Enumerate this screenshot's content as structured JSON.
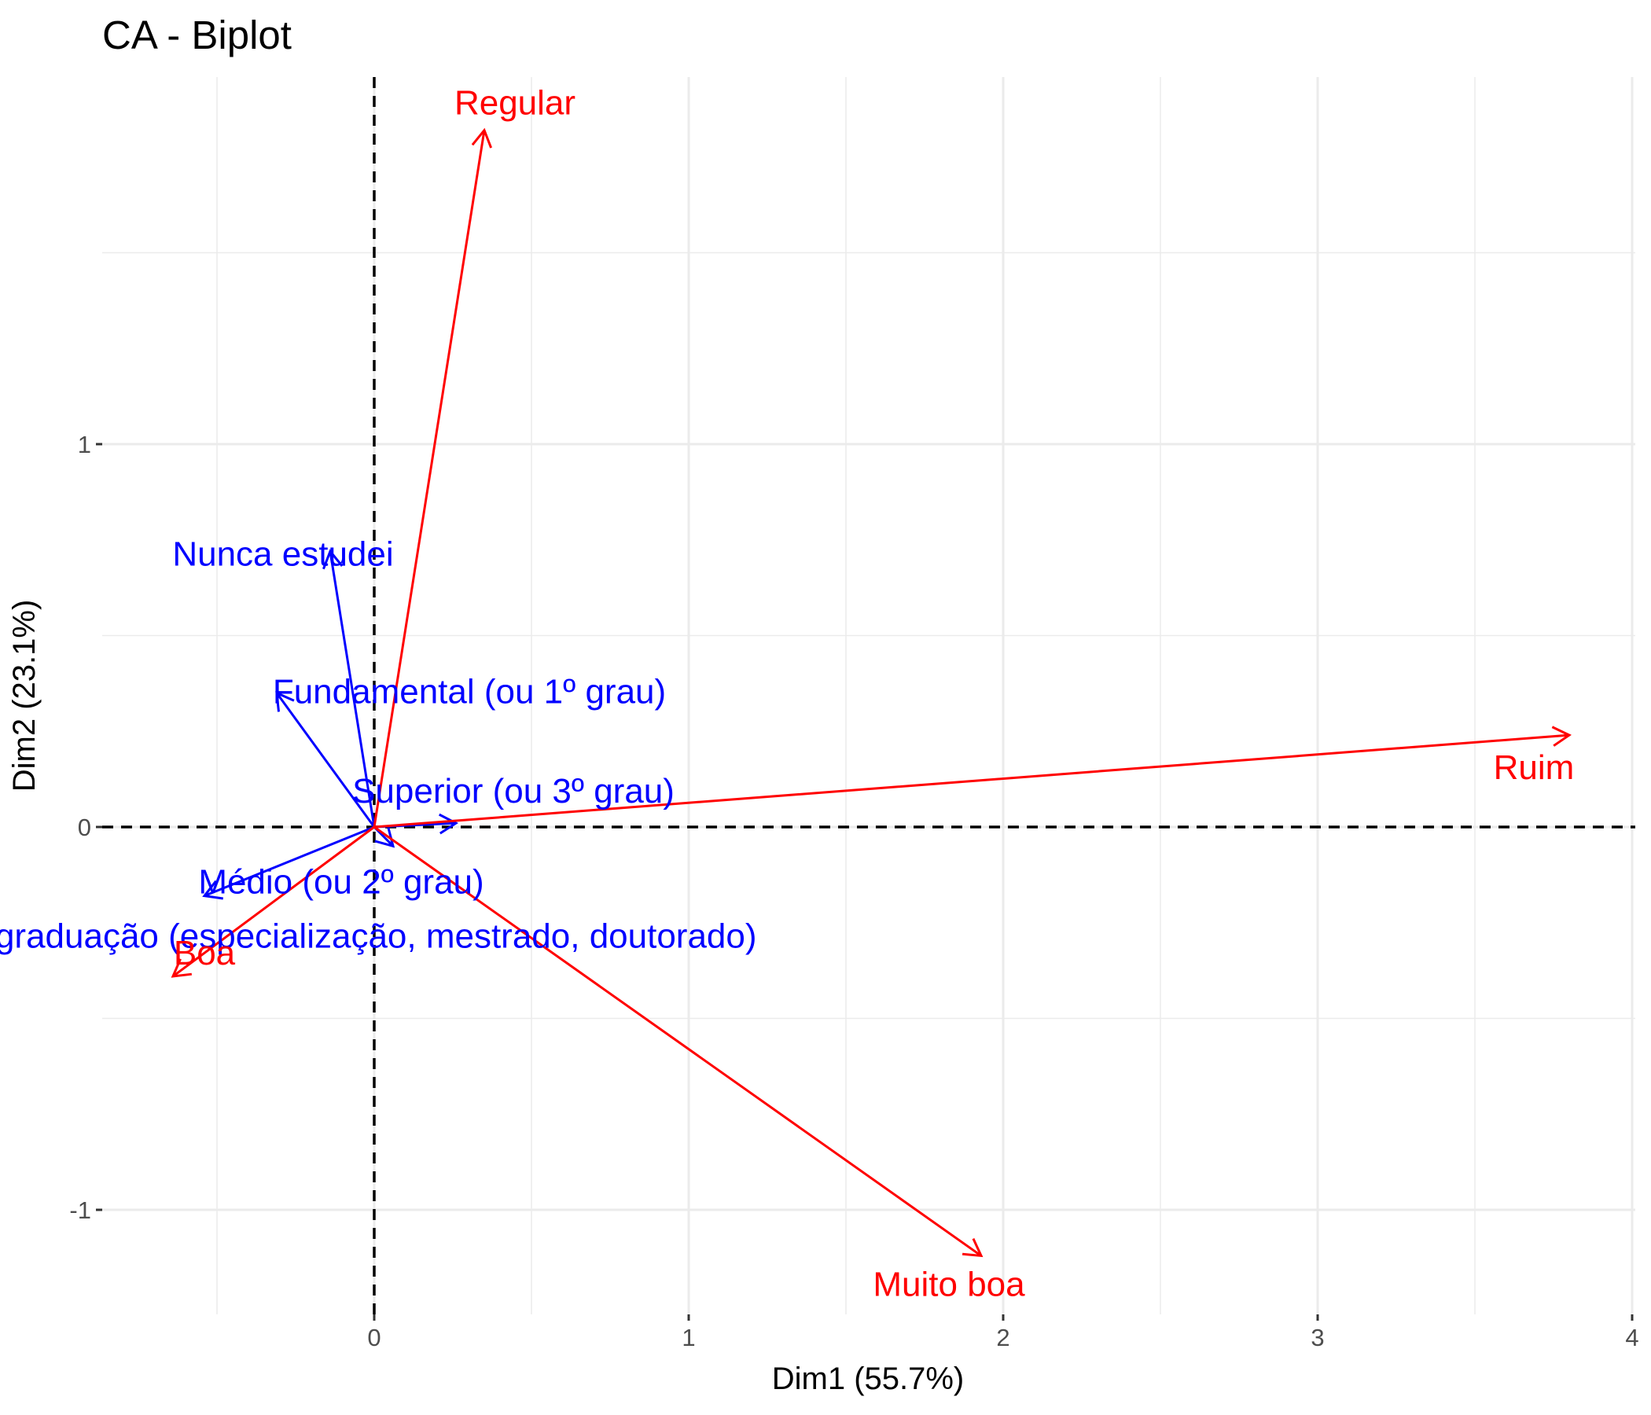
{
  "chart_data": {
    "type": "scatter",
    "title": "CA - Biplot",
    "xlabel": "Dim1 (55.7%)",
    "ylabel": "Dim2 (23.1%)",
    "xlim": [
      -0.68,
      4.0
    ],
    "ylim": [
      -1.27,
      1.95
    ],
    "x_ticks": [
      0,
      1,
      2,
      3,
      4
    ],
    "y_ticks": [
      -1,
      0,
      1
    ],
    "grid": true,
    "reference_lines": {
      "x": 0,
      "y": 0,
      "style": "dashed"
    },
    "colors": {
      "rows": "#0000ff",
      "columns": "#ff0000",
      "grid": "#ebebeb",
      "reference": "#000000"
    },
    "series": [
      {
        "name": "rows",
        "color": "#0000ff",
        "points": [
          {
            "label": "Nunca estudei",
            "x": -0.14,
            "y": 0.72
          },
          {
            "label": "Fundamental (ou 1º grau)",
            "x": -0.31,
            "y": 0.35
          },
          {
            "label": "Superior (ou 3º grau)",
            "x": 0.26,
            "y": 0.01
          },
          {
            "label": "Médio (ou 2º grau)",
            "x": -0.54,
            "y": -0.18
          },
          {
            "label": "Pós-graduação (especialização, mestrado, doutorado)",
            "x": 0.06,
            "y": -0.05
          }
        ]
      },
      {
        "name": "columns",
        "color": "#ff0000",
        "points": [
          {
            "label": "Regular",
            "x": 0.35,
            "y": 1.82
          },
          {
            "label": "Ruim",
            "x": 3.8,
            "y": 0.24
          },
          {
            "label": "Boa",
            "x": -0.64,
            "y": -0.39
          },
          {
            "label": "Muito boa",
            "x": 1.93,
            "y": -1.12
          }
        ]
      }
    ]
  }
}
